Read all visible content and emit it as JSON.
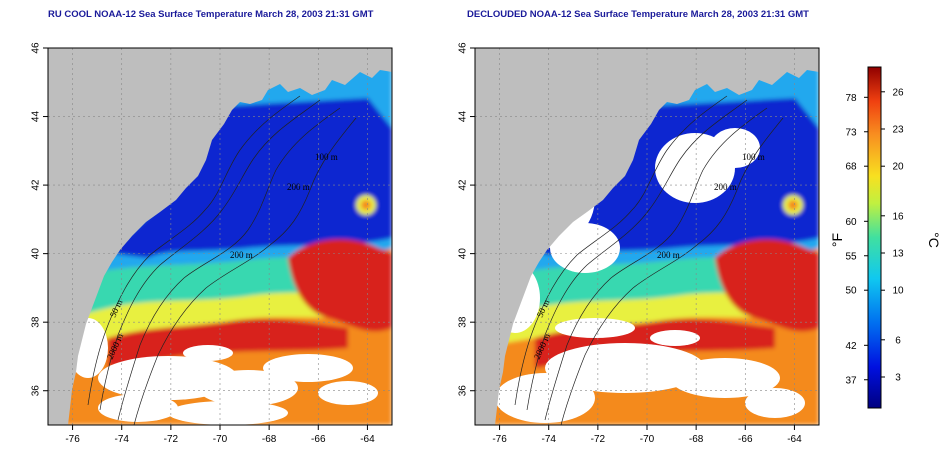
{
  "titles": {
    "left": "RU COOL NOAA-12 Sea Surface Temperature March 28, 2003 21:31 GMT",
    "right": "DECLOUDED NOAA-12 Sea Surface Temperature March 28, 2003 21:31 GMT"
  },
  "axes": {
    "lon_ticks": [
      "-76",
      "-74",
      "-72",
      "-70",
      "-68",
      "-66",
      "-64"
    ],
    "lat_ticks": [
      "46",
      "44",
      "42",
      "40",
      "38",
      "36"
    ]
  },
  "contour_labels": [
    "100 m",
    "200 m",
    "200 m",
    "50 m",
    "2000 m"
  ],
  "colorbar": {
    "fahrenheit_ticks": [
      "78",
      "73",
      "68",
      "60",
      "55",
      "50",
      "42",
      "37"
    ],
    "celsius_ticks": [
      "26",
      "23",
      "20",
      "16",
      "13",
      "10",
      "6",
      "3"
    ],
    "f_unit": "°F",
    "c_unit": "°C"
  },
  "colors": {
    "land": "#bebebe",
    "cloud": "#ffffff",
    "cold": "#0a28d0",
    "cool": "#22a8ee",
    "mid": "#38d8b0",
    "warm": "#e8f040",
    "hot": "#f48a1e",
    "vhot": "#d8201a"
  }
}
